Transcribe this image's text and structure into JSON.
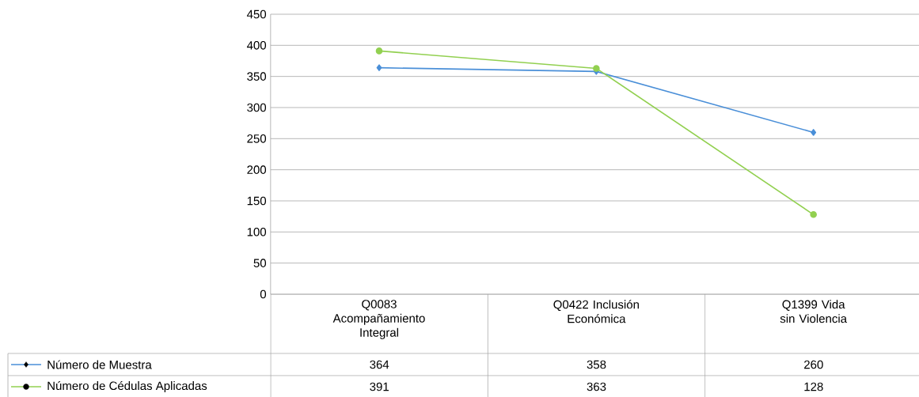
{
  "chart_data": {
    "type": "line",
    "categories": [
      "Q0083 Acompañamiento Integral",
      "Q0422 Inclusión Económica",
      "Q1399 Vida sin Violencia"
    ],
    "series": [
      {
        "name": "Número de Muestra",
        "color": "#4a8fd8",
        "marker": "diamond",
        "values": [
          364,
          358,
          260
        ]
      },
      {
        "name": "Número de Cédulas Aplicadas",
        "color": "#92d050",
        "marker": "circle",
        "values": [
          391,
          363,
          128
        ]
      }
    ],
    "ylim": [
      0,
      450
    ],
    "yticks": [
      0,
      50,
      100,
      150,
      200,
      250,
      300,
      350,
      400,
      450
    ],
    "grid": "y",
    "legend": "bottom",
    "data_labels": true
  }
}
